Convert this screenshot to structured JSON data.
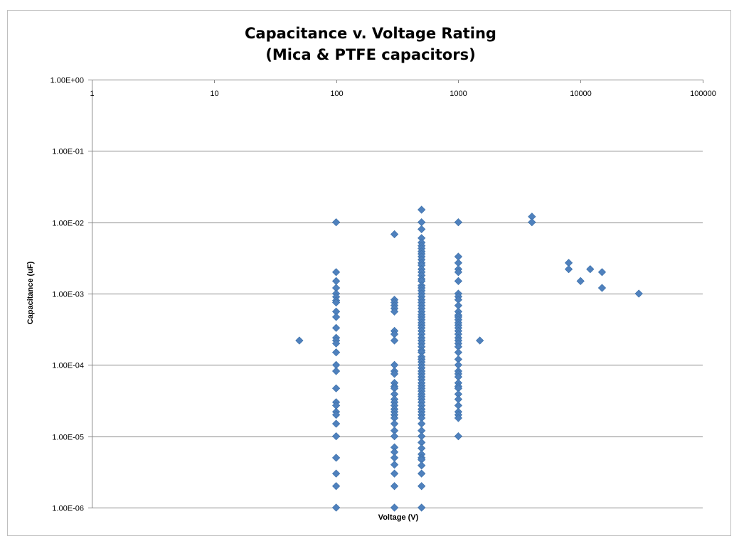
{
  "chart_data": {
    "type": "scatter",
    "title": [
      "Capacitance v. Voltage Rating",
      "(Mica & PTFE capacitors)"
    ],
    "xlabel": "Voltage (V)",
    "ylabel": "Capacitance (uF)",
    "x_scale": "log",
    "y_scale": "log",
    "xlim": [
      1,
      100000
    ],
    "ylim": [
      1e-06,
      1
    ],
    "x_ticks": [
      "1",
      "10",
      "100",
      "1000",
      "10000",
      "100000"
    ],
    "y_ticks": [
      "1.00E+00",
      "1.00E-01",
      "1.00E-02",
      "1.00E-03",
      "1.00E-04",
      "1.00E-05",
      "1.00E-06"
    ],
    "grid": "horizontal",
    "legend": "none",
    "marker": "diamond",
    "color": "#4f81bd",
    "series": [
      {
        "points": [
          [
            50,
            0.00022
          ],
          [
            100,
            0.01
          ],
          [
            100,
            0.002
          ],
          [
            100,
            0.0015
          ],
          [
            100,
            0.0012
          ],
          [
            100,
            0.001
          ],
          [
            100,
            0.0009
          ],
          [
            100,
            0.0008
          ],
          [
            100,
            0.00075
          ],
          [
            100,
            0.00056
          ],
          [
            100,
            0.00047
          ],
          [
            100,
            0.00033
          ],
          [
            100,
            0.00024
          ],
          [
            100,
            0.00022
          ],
          [
            100,
            0.0002
          ],
          [
            100,
            0.00015
          ],
          [
            100,
            0.0001
          ],
          [
            100,
            8.2e-05
          ],
          [
            100,
            4.7e-05
          ],
          [
            100,
            3e-05
          ],
          [
            100,
            2.7e-05
          ],
          [
            100,
            2.2e-05
          ],
          [
            100,
            2e-05
          ],
          [
            100,
            1.5e-05
          ],
          [
            100,
            1e-05
          ],
          [
            100,
            5e-06
          ],
          [
            100,
            3e-06
          ],
          [
            100,
            2e-06
          ],
          [
            100,
            1e-06
          ],
          [
            300,
            0.0068
          ],
          [
            300,
            0.00082
          ],
          [
            300,
            0.00075
          ],
          [
            300,
            0.00068
          ],
          [
            300,
            0.00062
          ],
          [
            300,
            0.00056
          ],
          [
            300,
            0.0003
          ],
          [
            300,
            0.00027
          ],
          [
            300,
            0.00022
          ],
          [
            300,
            0.0001
          ],
          [
            300,
            8.2e-05
          ],
          [
            300,
            7.5e-05
          ],
          [
            300,
            5.6e-05
          ],
          [
            300,
            5e-05
          ],
          [
            300,
            4.7e-05
          ],
          [
            300,
            3.9e-05
          ],
          [
            300,
            3.3e-05
          ],
          [
            300,
            3e-05
          ],
          [
            300,
            2.7e-05
          ],
          [
            300,
            2.4e-05
          ],
          [
            300,
            2.2e-05
          ],
          [
            300,
            2e-05
          ],
          [
            300,
            1.8e-05
          ],
          [
            300,
            1.5e-05
          ],
          [
            300,
            1.2e-05
          ],
          [
            300,
            1e-05
          ],
          [
            300,
            7e-06
          ],
          [
            300,
            6e-06
          ],
          [
            300,
            5e-06
          ],
          [
            300,
            4e-06
          ],
          [
            300,
            3e-06
          ],
          [
            300,
            2e-06
          ],
          [
            300,
            1e-06
          ],
          [
            500,
            0.015
          ],
          [
            500,
            0.01
          ],
          [
            500,
            0.008
          ],
          [
            500,
            0.006
          ],
          [
            500,
            0.0052
          ],
          [
            500,
            0.0047
          ],
          [
            500,
            0.0043
          ],
          [
            500,
            0.0039
          ],
          [
            500,
            0.0036
          ],
          [
            500,
            0.0033
          ],
          [
            500,
            0.003
          ],
          [
            500,
            0.0027
          ],
          [
            500,
            0.0025
          ],
          [
            500,
            0.0022
          ],
          [
            500,
            0.002
          ],
          [
            500,
            0.0018
          ],
          [
            500,
            0.0016
          ],
          [
            500,
            0.0015
          ],
          [
            500,
            0.0013
          ],
          [
            500,
            0.0012
          ],
          [
            500,
            0.0011
          ],
          [
            500,
            0.001
          ],
          [
            500,
            0.00091
          ],
          [
            500,
            0.00082
          ],
          [
            500,
            0.00075
          ],
          [
            500,
            0.00068
          ],
          [
            500,
            0.00062
          ],
          [
            500,
            0.00056
          ],
          [
            500,
            0.00051
          ],
          [
            500,
            0.00047
          ],
          [
            500,
            0.00043
          ],
          [
            500,
            0.00039
          ],
          [
            500,
            0.00036
          ],
          [
            500,
            0.00033
          ],
          [
            500,
            0.0003
          ],
          [
            500,
            0.00027
          ],
          [
            500,
            0.00024
          ],
          [
            500,
            0.00022
          ],
          [
            500,
            0.0002
          ],
          [
            500,
            0.00018
          ],
          [
            500,
            0.00016
          ],
          [
            500,
            0.00015
          ],
          [
            500,
            0.00013
          ],
          [
            500,
            0.00012
          ],
          [
            500,
            0.00011
          ],
          [
            500,
            0.0001
          ],
          [
            500,
            9.1e-05
          ],
          [
            500,
            8.2e-05
          ],
          [
            500,
            7.5e-05
          ],
          [
            500,
            6.8e-05
          ],
          [
            500,
            6.2e-05
          ],
          [
            500,
            5.6e-05
          ],
          [
            500,
            5.1e-05
          ],
          [
            500,
            4.7e-05
          ],
          [
            500,
            4.3e-05
          ],
          [
            500,
            3.9e-05
          ],
          [
            500,
            3.6e-05
          ],
          [
            500,
            3.3e-05
          ],
          [
            500,
            3e-05
          ],
          [
            500,
            2.7e-05
          ],
          [
            500,
            2.4e-05
          ],
          [
            500,
            2.2e-05
          ],
          [
            500,
            2e-05
          ],
          [
            500,
            1.8e-05
          ],
          [
            500,
            1.5e-05
          ],
          [
            500,
            1.2e-05
          ],
          [
            500,
            1e-05
          ],
          [
            500,
            8.2e-06
          ],
          [
            500,
            6.8e-06
          ],
          [
            500,
            5.6e-06
          ],
          [
            500,
            5e-06
          ],
          [
            500,
            4.7e-06
          ],
          [
            500,
            3.9e-06
          ],
          [
            500,
            3e-06
          ],
          [
            500,
            2e-06
          ],
          [
            500,
            1e-06
          ],
          [
            1000,
            0.01
          ],
          [
            1000,
            0.0033
          ],
          [
            1000,
            0.0027
          ],
          [
            1000,
            0.0022
          ],
          [
            1000,
            0.002
          ],
          [
            1000,
            0.0015
          ],
          [
            1000,
            0.001
          ],
          [
            1000,
            0.00091
          ],
          [
            1000,
            0.00082
          ],
          [
            1000,
            0.00068
          ],
          [
            1000,
            0.00056
          ],
          [
            1000,
            0.0005
          ],
          [
            1000,
            0.00047
          ],
          [
            1000,
            0.00043
          ],
          [
            1000,
            0.00039
          ],
          [
            1000,
            0.00036
          ],
          [
            1000,
            0.00033
          ],
          [
            1000,
            0.0003
          ],
          [
            1000,
            0.00027
          ],
          [
            1000,
            0.00024
          ],
          [
            1000,
            0.00022
          ],
          [
            1000,
            0.0002
          ],
          [
            1000,
            0.00018
          ],
          [
            1000,
            0.00015
          ],
          [
            1000,
            0.00012
          ],
          [
            1000,
            0.0001
          ],
          [
            1000,
            8.2e-05
          ],
          [
            1000,
            7.5e-05
          ],
          [
            1000,
            6.8e-05
          ],
          [
            1000,
            5.6e-05
          ],
          [
            1000,
            5e-05
          ],
          [
            1000,
            4.7e-05
          ],
          [
            1000,
            3.9e-05
          ],
          [
            1000,
            3.3e-05
          ],
          [
            1000,
            2.7e-05
          ],
          [
            1000,
            2.2e-05
          ],
          [
            1000,
            2e-05
          ],
          [
            1000,
            1.8e-05
          ],
          [
            1000,
            1e-05
          ],
          [
            1500,
            0.00022
          ],
          [
            4000,
            0.012
          ],
          [
            4000,
            0.01
          ],
          [
            8000,
            0.0027
          ],
          [
            8000,
            0.0022
          ],
          [
            10000,
            0.0015
          ],
          [
            12000,
            0.0022
          ],
          [
            15000,
            0.002
          ],
          [
            15000,
            0.0012
          ],
          [
            30000,
            0.001
          ]
        ]
      }
    ]
  }
}
